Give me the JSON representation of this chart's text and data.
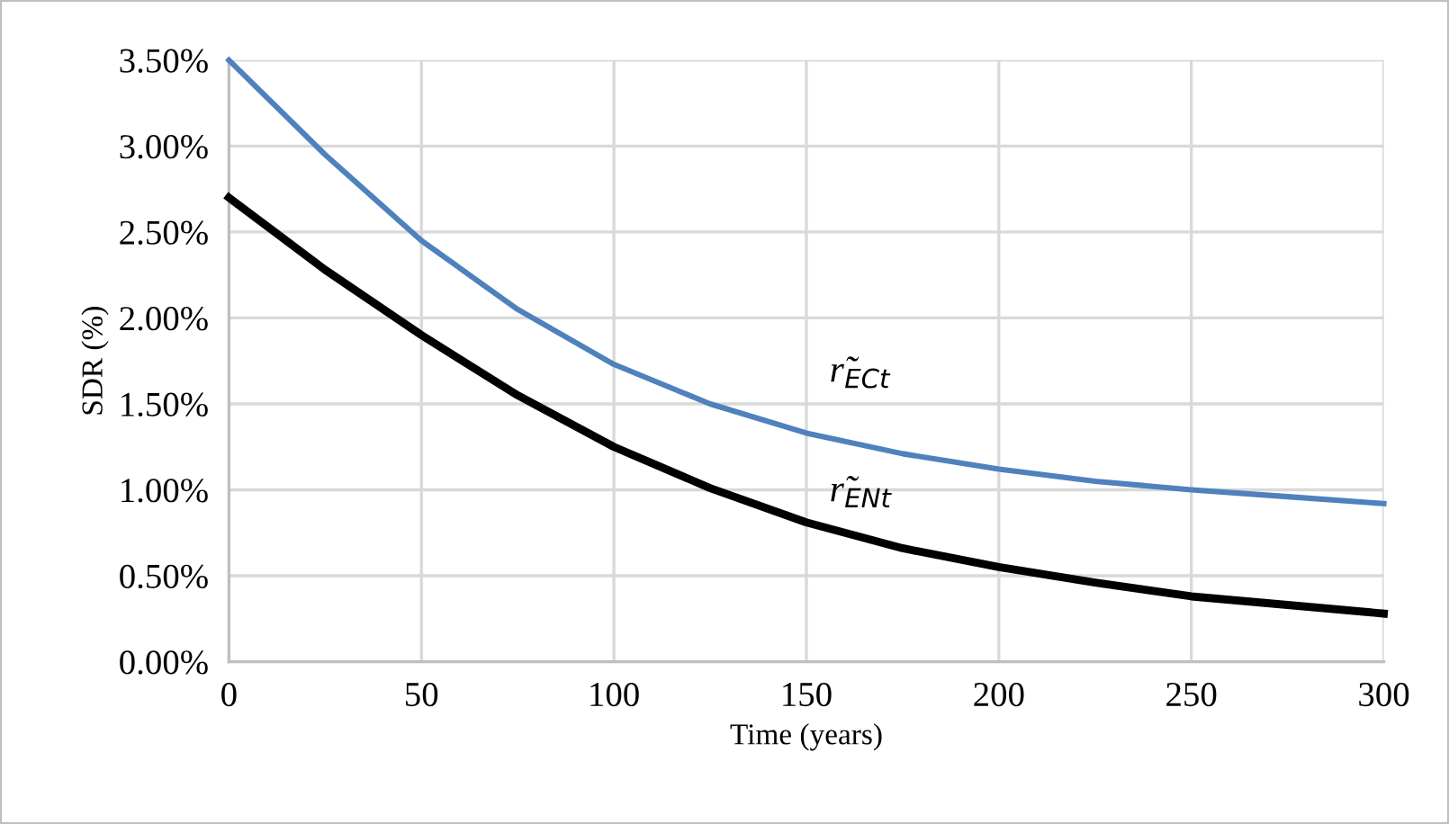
{
  "chart_data": {
    "type": "line",
    "xlabel": "Time (years)",
    "ylabel": "SDR (%)",
    "x": [
      0,
      25,
      50,
      75,
      100,
      125,
      150,
      175,
      200,
      225,
      250,
      275,
      300
    ],
    "series": [
      {
        "name": "r̃$_{ECt}$",
        "color": "#4f81bd",
        "values": [
          3.5,
          2.95,
          2.45,
          2.05,
          1.73,
          1.5,
          1.33,
          1.21,
          1.12,
          1.05,
          1.0,
          0.96,
          0.92
        ]
      },
      {
        "name": "r̃$_{ENt}$",
        "color": "#000000",
        "values": [
          2.7,
          2.28,
          1.9,
          1.55,
          1.25,
          1.01,
          0.81,
          0.66,
          0.55,
          0.46,
          0.38,
          0.33,
          0.28
        ]
      }
    ],
    "xlim": [
      0,
      300
    ],
    "xticks": [
      0,
      50,
      100,
      150,
      200,
      250,
      300
    ],
    "ylim": [
      0,
      3.5
    ],
    "yticks": [
      {
        "value": 0,
        "label": "0.00%"
      },
      {
        "value": 0.5,
        "label": "0.50%"
      },
      {
        "value": 1,
        "label": "1.00%"
      },
      {
        "value": 1.5,
        "label": "1.50%"
      },
      {
        "value": 2,
        "label": "2.00%"
      },
      {
        "value": 2.5,
        "label": "2.50%"
      },
      {
        "value": 3,
        "label": "3.00%"
      },
      {
        "value": 3.5,
        "label": "3.50%"
      }
    ],
    "grid": true,
    "legend": false,
    "marker": "none",
    "line_style": "solid"
  }
}
